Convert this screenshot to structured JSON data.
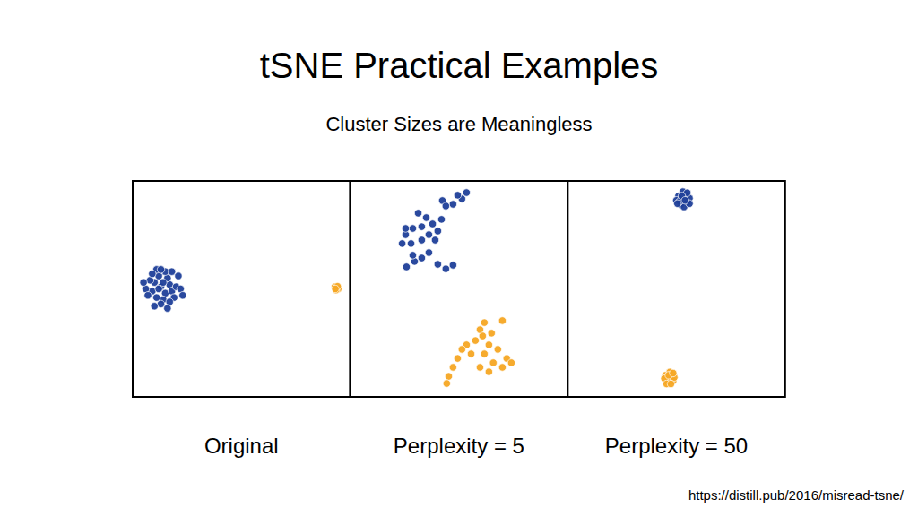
{
  "title": "tSNE Practical Examples",
  "subtitle": "Cluster Sizes are Meaningless",
  "source": "https://distill.pub/2016/misread-tsne/",
  "chart_data": [
    {
      "type": "scatter",
      "title": "Original",
      "xlim": [
        0,
        10
      ],
      "ylim": [
        0,
        10
      ],
      "tick_labels": false,
      "grid": false,
      "series": [
        {
          "color": "#1f3f99",
          "marker": "circle",
          "x": [
            1.3,
            1.0,
            1.5,
            1.7,
            0.9,
            1.2,
            1.4,
            1.8,
            0.6,
            1.1,
            1.6,
            2.0,
            1.3,
            0.8,
            1.5,
            1.9,
            1.0,
            2.2,
            1.2,
            1.4,
            0.7,
            1.7,
            1.1,
            2.1,
            0.5,
            1.6,
            1.3,
            0.9,
            1.8,
            2.3
          ],
          "values": [
            5.1,
            5.3,
            4.8,
            5.2,
            4.9,
            5.6,
            4.5,
            4.9,
            5.0,
            4.6,
            5.5,
            5.1,
            4.3,
            5.4,
            5.8,
            4.6,
            4.2,
            5.0,
            5.0,
            5.3,
            4.7,
            4.4,
            5.9,
            5.6,
            5.3,
            4.1,
            5.9,
            5.7,
            5.8,
            4.7
          ]
        },
        {
          "color": "#f5a623",
          "marker": "circle",
          "x": [
            9.38,
            9.3,
            9.45,
            9.35,
            9.42,
            9.32
          ],
          "values": [
            5.04,
            5.1,
            5.0,
            4.95,
            5.12,
            5.0
          ]
        }
      ]
    },
    {
      "type": "scatter",
      "title": "Perplexity = 5",
      "xlim": [
        0,
        10
      ],
      "ylim": [
        0,
        10
      ],
      "tick_labels": false,
      "grid": false,
      "series": [
        {
          "color": "#1f3f99",
          "marker": "circle",
          "x": [
            4.24,
            4.73,
            5.14,
            5.35,
            4.94,
            4.4,
            3.13,
            3.5,
            3.79,
            4.03,
            3.62,
            3.29,
            2.88,
            2.55,
            2.39,
            2.8,
            3.29,
            3.91,
            3.62,
            3.29,
            2.96,
            2.59,
            2.88,
            4.03,
            4.4,
            4.73,
            2.55,
            4.2
          ],
          "values": [
            9.09,
            8.92,
            9.17,
            9.46,
            9.34,
            8.84,
            8.51,
            8.3,
            8.01,
            7.68,
            7.51,
            7.88,
            7.8,
            7.51,
            7.1,
            7.1,
            7.26,
            7.26,
            6.68,
            6.43,
            6.27,
            6.02,
            6.56,
            6.14,
            5.93,
            6.1,
            7.8,
            8.22
          ]
        },
        {
          "color": "#f5a623",
          "marker": "circle",
          "x": [
            6.17,
            5.97,
            6.5,
            7.0,
            5.76,
            5.35,
            5.14,
            5.56,
            6.38,
            6.79,
            7.2,
            7.41,
            7.0,
            6.58,
            6.17,
            4.94,
            4.73,
            4.53,
            4.44,
            5.97,
            6.38,
            6.09
          ],
          "values": [
            3.44,
            3.11,
            2.95,
            3.53,
            2.61,
            2.41,
            2.2,
            1.99,
            2.41,
            2.2,
            1.78,
            1.58,
            1.37,
            1.58,
            1.99,
            1.78,
            1.37,
            0.95,
            0.62,
            1.37,
            1.16,
            2.82
          ]
        }
      ]
    },
    {
      "type": "scatter",
      "title": "Perplexity = 50",
      "xlim": [
        0,
        10
      ],
      "ylim": [
        0,
        10
      ],
      "tick_labels": false,
      "grid": false,
      "series": [
        {
          "color": "#1f3f99",
          "marker": "circle",
          "x": [
            5.31,
            5.1,
            5.5,
            5.2,
            5.45,
            5.0,
            5.6,
            5.3,
            5.35,
            5.15,
            5.5,
            5.25,
            5.05,
            5.6,
            5.4
          ],
          "values": [
            9.17,
            9.3,
            9.0,
            8.9,
            9.35,
            9.1,
            9.2,
            9.5,
            8.8,
            9.05,
            9.45,
            9.3,
            8.95,
            8.95,
            9.1
          ]
        },
        {
          "color": "#f5a623",
          "marker": "circle",
          "x": [
            4.69,
            4.5,
            4.85,
            4.6,
            4.8,
            4.45,
            4.9,
            4.7,
            4.55,
            4.75,
            4.65,
            4.85
          ],
          "values": [
            0.87,
            1.0,
            0.75,
            0.7,
            1.05,
            0.85,
            0.9,
            1.15,
            0.6,
            0.6,
            1.0,
            1.1
          ]
        }
      ]
    }
  ]
}
